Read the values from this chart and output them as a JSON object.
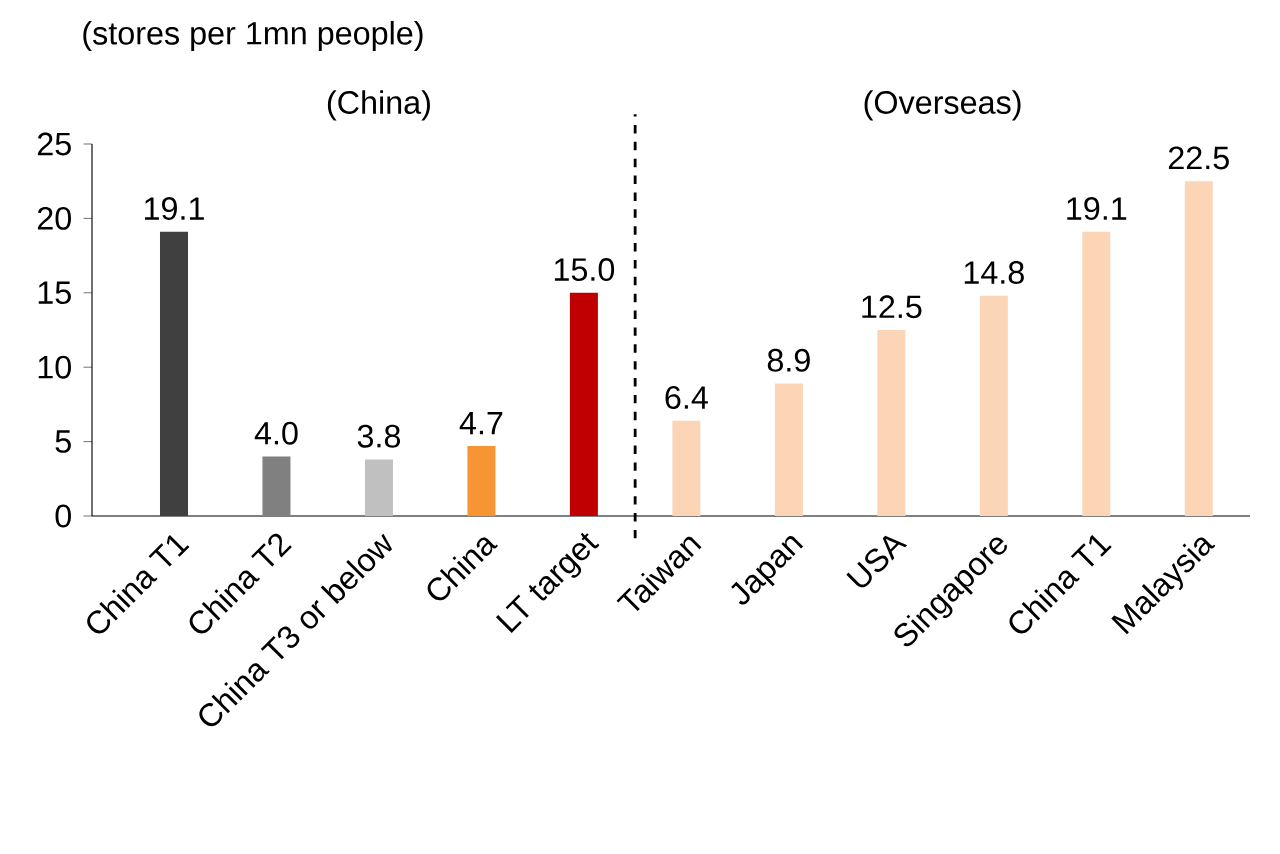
{
  "chart_data": {
    "type": "bar",
    "title": "(stores per 1mn people)",
    "annotations": [
      "(China)",
      "(Overseas)"
    ],
    "categories": [
      "China T1",
      "China T2",
      "China T3 or below",
      "China",
      "LT target",
      "Taiwan",
      "Japan",
      "USA",
      "Singapore",
      "China T1",
      "Malaysia"
    ],
    "values": [
      19.1,
      4.0,
      3.8,
      4.7,
      15.0,
      6.4,
      8.9,
      12.5,
      14.8,
      19.1,
      22.5
    ],
    "value_labels": [
      "19.1",
      "4.0",
      "3.8",
      "4.7",
      "15.0",
      "6.4",
      "8.9",
      "12.5",
      "14.8",
      "19.1",
      "22.5"
    ],
    "colors": [
      "#404040",
      "#808080",
      "#c0c0c0",
      "#f79433",
      "#c00000",
      "#fbd5b5",
      "#fbd5b5",
      "#fbd5b5",
      "#fbd5b5",
      "#fbd5b5",
      "#fbd5b5"
    ],
    "ylim": [
      0,
      25
    ],
    "yticks": [
      0,
      5,
      10,
      15,
      20,
      25
    ],
    "grid": false
  }
}
